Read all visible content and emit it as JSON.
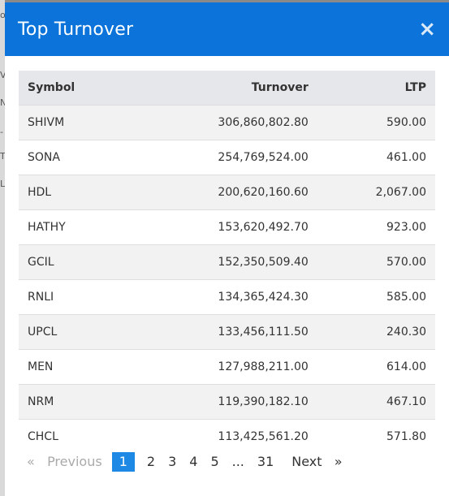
{
  "modal": {
    "title": "Top Turnover",
    "close_label": "×"
  },
  "table": {
    "headers": [
      "Symbol",
      "Turnover",
      "LTP"
    ],
    "rows": [
      {
        "symbol": "SHIVM",
        "turnover": "306,860,802.80",
        "ltp": "590.00"
      },
      {
        "symbol": "SONA",
        "turnover": "254,769,524.00",
        "ltp": "461.00"
      },
      {
        "symbol": "HDL",
        "turnover": "200,620,160.60",
        "ltp": "2,067.00"
      },
      {
        "symbol": "HATHY",
        "turnover": "153,620,492.70",
        "ltp": "923.00"
      },
      {
        "symbol": "GCIL",
        "turnover": "152,350,509.40",
        "ltp": "570.00"
      },
      {
        "symbol": "RNLI",
        "turnover": "134,365,424.30",
        "ltp": "585.00"
      },
      {
        "symbol": "UPCL",
        "turnover": "133,456,111.50",
        "ltp": "240.30"
      },
      {
        "symbol": "MEN",
        "turnover": "127,988,211.00",
        "ltp": "614.00"
      },
      {
        "symbol": "NRM",
        "turnover": "119,390,182.10",
        "ltp": "467.10"
      },
      {
        "symbol": "CHCL",
        "turnover": "113,425,561.20",
        "ltp": "571.80"
      }
    ]
  },
  "pagination": {
    "prev_arrow": "«",
    "prev_label": "Previous",
    "pages": [
      "1",
      "2",
      "3",
      "4",
      "5",
      "...",
      "31"
    ],
    "active_page": "1",
    "next_label": "Next",
    "next_arrow": "»"
  },
  "colors": {
    "header_bg": "#0b73d9",
    "active_page_bg": "#1e88e5"
  },
  "backdrop": {
    "marks": [
      "o",
      "V",
      "N",
      "-",
      "T",
      "L"
    ]
  }
}
